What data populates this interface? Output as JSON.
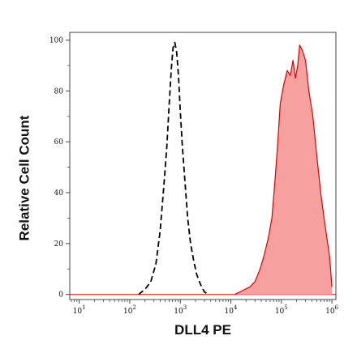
{
  "chart_data": {
    "type": "area",
    "title": "",
    "xlabel": "DLL4 PE",
    "ylabel": "Relative Cell Count",
    "xscale": "log",
    "xlim": [
      6.5,
      1200000
    ],
    "ylim": [
      -2,
      103
    ],
    "grid": false,
    "legend": "none",
    "x_ticks": [
      {
        "base": "10",
        "exp": "1",
        "value": 10
      },
      {
        "base": "10",
        "exp": "2",
        "value": 100
      },
      {
        "base": "10",
        "exp": "3",
        "value": 1000
      },
      {
        "base": "10",
        "exp": "4",
        "value": 10000
      },
      {
        "base": "10",
        "exp": "5",
        "value": 100000
      },
      {
        "base": "10",
        "exp": "6",
        "value": 1000000
      }
    ],
    "y_ticks": [
      {
        "label": "0",
        "value": 0
      },
      {
        "label": "20",
        "value": 20
      },
      {
        "label": "40",
        "value": 40
      },
      {
        "label": "60",
        "value": 60
      },
      {
        "label": "80",
        "value": 80
      },
      {
        "label": "100",
        "value": 100
      }
    ],
    "series": [
      {
        "style": "dashed",
        "color": "#000000",
        "x": [
          150,
          200,
          260,
          330,
          400,
          470,
          540,
          600,
          660,
          720,
          780,
          850,
          920,
          1000,
          1100,
          1250,
          1400,
          1600,
          1850,
          2100,
          2500,
          3000,
          3600
        ],
        "y": [
          0,
          2,
          5,
          12,
          25,
          42,
          58,
          74,
          88,
          97,
          99,
          95,
          86,
          72,
          58,
          43,
          30,
          20,
          13,
          8,
          4,
          1,
          0
        ]
      },
      {
        "style": "filled",
        "color": "#dd0000",
        "fill": "#f7a0a0",
        "x": [
          12000,
          15000,
          19000,
          24000,
          30000,
          38000,
          45000,
          55000,
          65000,
          75000,
          85000,
          95000,
          110000,
          130000,
          150000,
          170000,
          190000,
          210000,
          230000,
          260000,
          300000,
          350000,
          420000,
          500000,
          600000,
          700000,
          800000,
          900000,
          1000000
        ],
        "y": [
          0,
          1,
          2,
          3,
          5,
          10,
          15,
          22,
          30,
          45,
          60,
          75,
          82,
          88,
          86,
          92,
          85,
          90,
          98,
          96,
          92,
          80,
          70,
          55,
          40,
          30,
          22,
          15,
          3
        ]
      }
    ]
  }
}
